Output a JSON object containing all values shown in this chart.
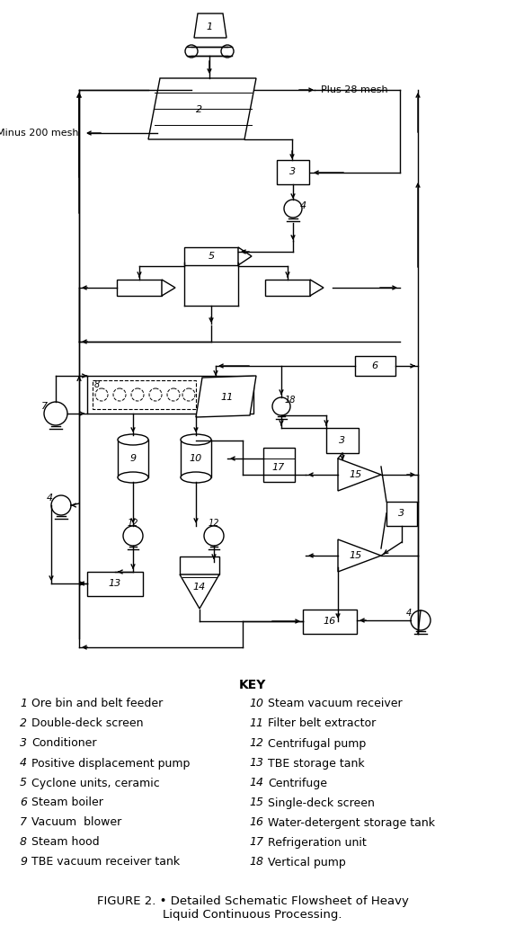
{
  "title": "FIGURE 2. • Detailed Schematic Flowsheet of Heavy\nLiquid Continuous Processing.",
  "key_title": "KEY",
  "key_left": [
    [
      "1",
      "Ore bin and belt feeder"
    ],
    [
      "2",
      "Double-deck screen"
    ],
    [
      "3",
      "Conditioner"
    ],
    [
      "4",
      "Positive displacement pump"
    ],
    [
      "5",
      "Cyclone units, ceramic"
    ],
    [
      "6",
      "Steam boiler"
    ],
    [
      "7",
      "Vacuum  blower"
    ],
    [
      "8",
      "Steam hood"
    ],
    [
      "9",
      "TBE vacuum receiver tank"
    ]
  ],
  "key_right": [
    [
      "10",
      "Steam vacuum receiver"
    ],
    [
      "11",
      "Filter belt extractor"
    ],
    [
      "12",
      "Centrifugal pump"
    ],
    [
      "13",
      "TBE storage tank"
    ],
    [
      "14",
      "Centrifuge"
    ],
    [
      "15",
      "Single-deck screen"
    ],
    [
      "16",
      "Water-detergent storage tank"
    ],
    [
      "17",
      "Refrigeration unit"
    ],
    [
      "18",
      "Vertical pump"
    ]
  ],
  "bg_color": "#ffffff",
  "line_color": "#000000",
  "plus28_label": "Plus 28 mesh",
  "minus200_label": "Minus 200 mesh"
}
